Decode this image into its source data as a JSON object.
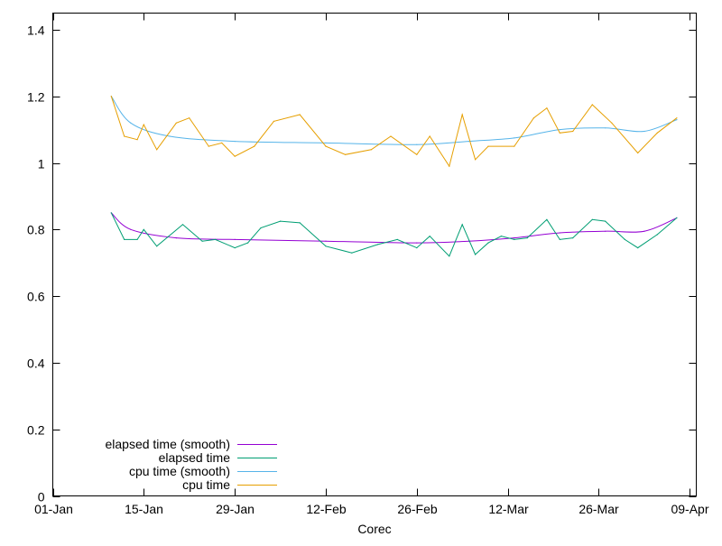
{
  "chart_data": {
    "type": "line",
    "title": "",
    "xlabel": "Corec",
    "ylabel": "",
    "xlim": [
      "2000-01-01",
      "2000-04-09"
    ],
    "ylim": [
      0,
      1.45
    ],
    "x_ticks": [
      "01-Jan",
      "15-Jan",
      "29-Jan",
      "12-Feb",
      "26-Feb",
      "12-Mar",
      "26-Mar",
      "09-Apr"
    ],
    "y_ticks": [
      "0",
      "0.2",
      "0.4",
      "0.6",
      "0.8",
      "1",
      "1.2",
      "1.4"
    ],
    "grid": false,
    "legend_position": "bottom-left",
    "colors": {
      "elapsed_smooth": "#9400d3",
      "elapsed": "#009e73",
      "cpu_smooth": "#56b4e9",
      "cpu": "#e69f00"
    },
    "series": [
      {
        "name": "elapsed time (smooth)",
        "color": "#9400d3",
        "points": [
          [
            "2000-01-10",
            0.85
          ],
          [
            "2000-01-13",
            0.8
          ],
          [
            "2000-01-20",
            0.775
          ],
          [
            "2000-01-29",
            0.77
          ],
          [
            "2000-02-12",
            0.765
          ],
          [
            "2000-02-26",
            0.76
          ],
          [
            "2000-03-05",
            0.765
          ],
          [
            "2000-03-12",
            0.775
          ],
          [
            "2000-03-19",
            0.79
          ],
          [
            "2000-03-26",
            0.795
          ],
          [
            "2000-04-01",
            0.795
          ],
          [
            "2000-04-06",
            0.835
          ]
        ]
      },
      {
        "name": "elapsed time",
        "color": "#009e73",
        "points": [
          [
            "2000-01-10",
            0.85
          ],
          [
            "2000-01-12",
            0.77
          ],
          [
            "2000-01-14",
            0.77
          ],
          [
            "2000-01-15",
            0.8
          ],
          [
            "2000-01-17",
            0.75
          ],
          [
            "2000-01-21",
            0.815
          ],
          [
            "2000-01-24",
            0.765
          ],
          [
            "2000-01-26",
            0.77
          ],
          [
            "2000-01-29",
            0.745
          ],
          [
            "2000-01-31",
            0.76
          ],
          [
            "2000-02-02",
            0.805
          ],
          [
            "2000-02-05",
            0.825
          ],
          [
            "2000-02-08",
            0.82
          ],
          [
            "2000-02-12",
            0.75
          ],
          [
            "2000-02-16",
            0.73
          ],
          [
            "2000-02-20",
            0.755
          ],
          [
            "2000-02-23",
            0.77
          ],
          [
            "2000-02-26",
            0.745
          ],
          [
            "2000-02-28",
            0.78
          ],
          [
            "2000-03-02",
            0.72
          ],
          [
            "2000-03-04",
            0.815
          ],
          [
            "2000-03-06",
            0.725
          ],
          [
            "2000-03-08",
            0.76
          ],
          [
            "2000-03-10",
            0.78
          ],
          [
            "2000-03-12",
            0.77
          ],
          [
            "2000-03-14",
            0.775
          ],
          [
            "2000-03-17",
            0.83
          ],
          [
            "2000-03-19",
            0.77
          ],
          [
            "2000-03-21",
            0.775
          ],
          [
            "2000-03-24",
            0.83
          ],
          [
            "2000-03-26",
            0.825
          ],
          [
            "2000-03-29",
            0.77
          ],
          [
            "2000-03-31",
            0.745
          ],
          [
            "2000-04-03",
            0.785
          ],
          [
            "2000-04-06",
            0.835
          ]
        ]
      },
      {
        "name": "cpu time (smooth)",
        "color": "#56b4e9",
        "points": [
          [
            "2000-01-10",
            1.2
          ],
          [
            "2000-01-13",
            1.12
          ],
          [
            "2000-01-19",
            1.08
          ],
          [
            "2000-01-29",
            1.065
          ],
          [
            "2000-02-12",
            1.06
          ],
          [
            "2000-02-26",
            1.055
          ],
          [
            "2000-03-05",
            1.065
          ],
          [
            "2000-03-12",
            1.075
          ],
          [
            "2000-03-19",
            1.1
          ],
          [
            "2000-03-26",
            1.105
          ],
          [
            "2000-04-01",
            1.095
          ],
          [
            "2000-04-06",
            1.13
          ]
        ]
      },
      {
        "name": "cpu time",
        "color": "#e69f00",
        "points": [
          [
            "2000-01-10",
            1.2
          ],
          [
            "2000-01-12",
            1.08
          ],
          [
            "2000-01-14",
            1.07
          ],
          [
            "2000-01-15",
            1.115
          ],
          [
            "2000-01-17",
            1.04
          ],
          [
            "2000-01-20",
            1.12
          ],
          [
            "2000-01-22",
            1.135
          ],
          [
            "2000-01-25",
            1.05
          ],
          [
            "2000-01-27",
            1.06
          ],
          [
            "2000-01-29",
            1.02
          ],
          [
            "2000-02-01",
            1.05
          ],
          [
            "2000-02-04",
            1.125
          ],
          [
            "2000-02-08",
            1.145
          ],
          [
            "2000-02-12",
            1.05
          ],
          [
            "2000-02-15",
            1.025
          ],
          [
            "2000-02-19",
            1.04
          ],
          [
            "2000-02-22",
            1.08
          ],
          [
            "2000-02-26",
            1.025
          ],
          [
            "2000-02-28",
            1.08
          ],
          [
            "2000-03-02",
            0.99
          ],
          [
            "2000-03-04",
            1.145
          ],
          [
            "2000-03-06",
            1.01
          ],
          [
            "2000-03-08",
            1.05
          ],
          [
            "2000-03-12",
            1.05
          ],
          [
            "2000-03-15",
            1.135
          ],
          [
            "2000-03-17",
            1.165
          ],
          [
            "2000-03-19",
            1.09
          ],
          [
            "2000-03-21",
            1.095
          ],
          [
            "2000-03-24",
            1.175
          ],
          [
            "2000-03-27",
            1.12
          ],
          [
            "2000-03-31",
            1.03
          ],
          [
            "2000-04-03",
            1.09
          ],
          [
            "2000-04-06",
            1.135
          ]
        ]
      }
    ]
  }
}
